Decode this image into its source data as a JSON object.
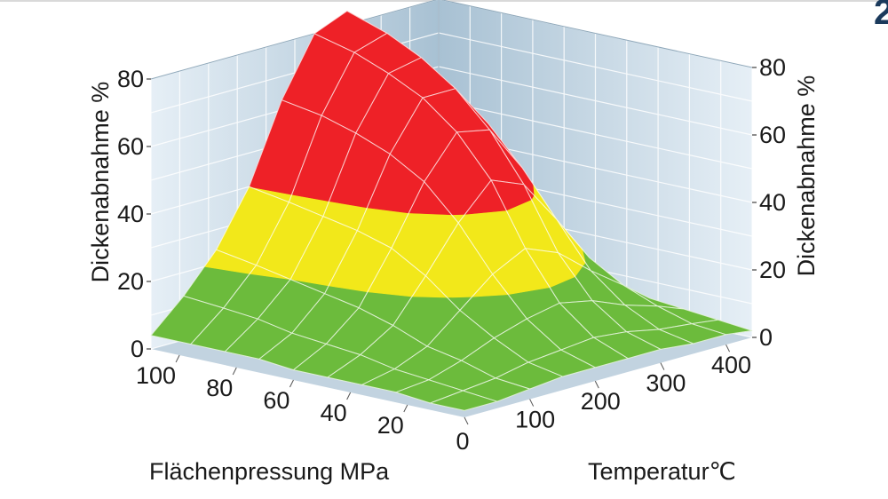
{
  "page": {
    "corner_mark": "2"
  },
  "colors": {
    "green": "#6cbb3c",
    "yellow": "#f2e81a",
    "red": "#ee2127",
    "wall_light": "#e6eff6",
    "wall_dark": "#a8c1d3",
    "floor": "#c2d3e0",
    "grid": "#ffffff"
  },
  "chart_data": {
    "type": "surface3d",
    "z_label": "Dickenabnahme %",
    "z_ticks": [
      "0",
      "20",
      "40",
      "60",
      "80"
    ],
    "z_range": [
      0,
      80
    ],
    "pressure_label": "Flächenpressung MPa",
    "pressure_ticks": [
      "100",
      "80",
      "60",
      "40",
      "20"
    ],
    "pressure_range": [
      0,
      110
    ],
    "temperature_label": "Temperatur℃",
    "temperature_ticks": [
      "0",
      "100",
      "200",
      "300",
      "400"
    ],
    "temperature_range": [
      0,
      440
    ],
    "thresholds": {
      "green_max": 20,
      "yellow_max": 40
    },
    "grid": {
      "temperature": [
        0,
        50,
        100,
        150,
        200,
        250,
        300,
        350,
        400,
        440
      ],
      "pressure": [
        0,
        12,
        24,
        36,
        48,
        60,
        72,
        84,
        96,
        110
      ],
      "values": [
        [
          2,
          2,
          3,
          3,
          3,
          3,
          4,
          4,
          4,
          4
        ],
        [
          2,
          3,
          4,
          5,
          7,
          8,
          9,
          11,
          12,
          13
        ],
        [
          3,
          4,
          7,
          9,
          13,
          16,
          18,
          20,
          22,
          24
        ],
        [
          4,
          6,
          11,
          17,
          25,
          31,
          34,
          36,
          38,
          40
        ],
        [
          4,
          7,
          14,
          25,
          38,
          48,
          54,
          58,
          61,
          63
        ],
        [
          4,
          8,
          16,
          30,
          48,
          60,
          68,
          73,
          77,
          80
        ],
        [
          4,
          7,
          14,
          26,
          44,
          58,
          68,
          75,
          80,
          84
        ],
        [
          3,
          5,
          10,
          18,
          31,
          44,
          55,
          63,
          70,
          74
        ],
        [
          3,
          4,
          7,
          11,
          17,
          24,
          31,
          37,
          42,
          46
        ],
        [
          2,
          3,
          4,
          5,
          7,
          9,
          11,
          13,
          15,
          16
        ]
      ]
    }
  }
}
